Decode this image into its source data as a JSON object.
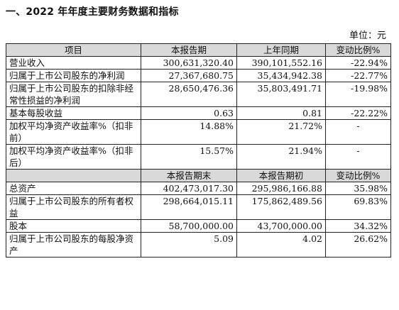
{
  "heading": "一、2022 年年度主要财务数据和指标",
  "unit": "单位：元",
  "header1": [
    "项目",
    "本报告期",
    "上年同期",
    "变动比例%"
  ],
  "section1": [
    {
      "label": "营业收入",
      "v1": "300,631,320.40",
      "v2": "390,101,552.16",
      "change": "-22.94%"
    },
    {
      "label": "归属于上市公司股东的净利润",
      "v1": "27,367,680.75",
      "v2": "35,434,942.38",
      "change": "-22.77%"
    },
    {
      "label": "归属于上市公司股东的扣除非经常性损益的净利润",
      "v1": "28,650,476.36",
      "v2": "35,803,491.71",
      "change": "-19.98%"
    },
    {
      "label": "基本每股收益",
      "v1": "0.63",
      "v2": "0.81",
      "change": "-22.22%"
    },
    {
      "label": "加权平均净资产收益率%（扣非前）",
      "v1": "14.88%",
      "v2": "21.72%",
      "change": "-"
    },
    {
      "label": "加权平均净资产收益率%（扣非后）",
      "v1": "15.57%",
      "v2": "21.94%",
      "change": "-"
    }
  ],
  "header2": [
    "",
    "本报告期末",
    "本报告期初",
    "变动比例%"
  ],
  "section2": [
    {
      "label": "总资产",
      "v1": "402,473,017.30",
      "v2": "295,986,166.88",
      "change": "35.98%"
    },
    {
      "label": "归属于上市公司股东的所有者权益",
      "v1": "298,664,015.11",
      "v2": "175,862,489.56",
      "change": "69.83%"
    },
    {
      "label": "股本",
      "v1": "58,700,000.00",
      "v2": "43,700,000.00",
      "change": "34.32%"
    },
    {
      "label": "归属于上市公司股东的每股净资产",
      "v1": "5.09",
      "v2": "4.02",
      "change": "26.62%"
    }
  ]
}
